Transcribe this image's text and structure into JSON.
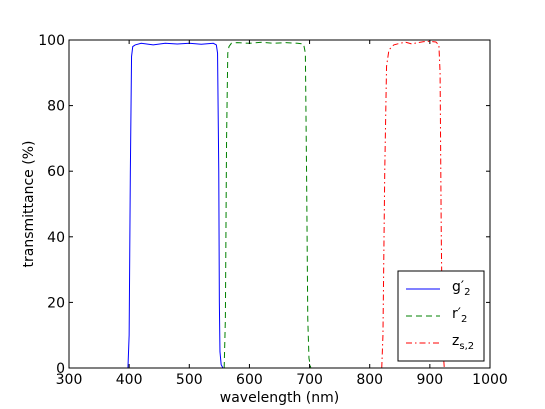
{
  "chart_data": {
    "type": "line",
    "xlabel": "wavelength (nm)",
    "ylabel": "transmittance (%)",
    "xlim": [
      300,
      1000
    ],
    "ylim": [
      0,
      100
    ],
    "x_ticks": [
      300,
      400,
      500,
      600,
      700,
      800,
      900,
      1000
    ],
    "y_ticks": [
      0,
      20,
      40,
      60,
      80,
      100
    ],
    "grid": false,
    "legend_position": "lower-right",
    "series": [
      {
        "name": "g′2",
        "legend_main": "g′",
        "legend_sub": "2",
        "color": "#0000ff",
        "dash": "solid",
        "x": [
          398,
          400,
          402,
          404,
          406,
          410,
          420,
          440,
          460,
          480,
          500,
          520,
          540,
          545,
          547,
          549,
          550,
          551,
          553,
          556
        ],
        "y": [
          0,
          10,
          60,
          95,
          98,
          98.5,
          99,
          98.5,
          99,
          98.8,
          99,
          98.7,
          99,
          98.5,
          96,
          60,
          20,
          5,
          1,
          0
        ]
      },
      {
        "name": "r′2",
        "legend_main": "r′",
        "legend_sub": "2",
        "color": "#008000",
        "dash": "dashed",
        "x": [
          558,
          560,
          562,
          564,
          566,
          570,
          580,
          600,
          620,
          640,
          660,
          680,
          690,
          693,
          695,
          697,
          699,
          702
        ],
        "y": [
          0,
          15,
          70,
          96,
          98,
          99,
          99.2,
          99,
          99.3,
          99,
          99.2,
          99,
          98.8,
          96,
          60,
          15,
          3,
          0
        ]
      },
      {
        "name": "zs,2",
        "legend_main": "z",
        "legend_sub": "s,2",
        "color": "#ff0000",
        "dash": "dashdot",
        "x": [
          820,
          822,
          825,
          828,
          832,
          840,
          850,
          860,
          870,
          880,
          890,
          900,
          910,
          915,
          917,
          919,
          921,
          924
        ],
        "y": [
          0,
          10,
          60,
          92,
          97,
          98.5,
          99,
          99.3,
          98.8,
          99.2,
          99.5,
          99.6,
          99.4,
          98.5,
          90,
          40,
          8,
          0
        ]
      }
    ]
  }
}
